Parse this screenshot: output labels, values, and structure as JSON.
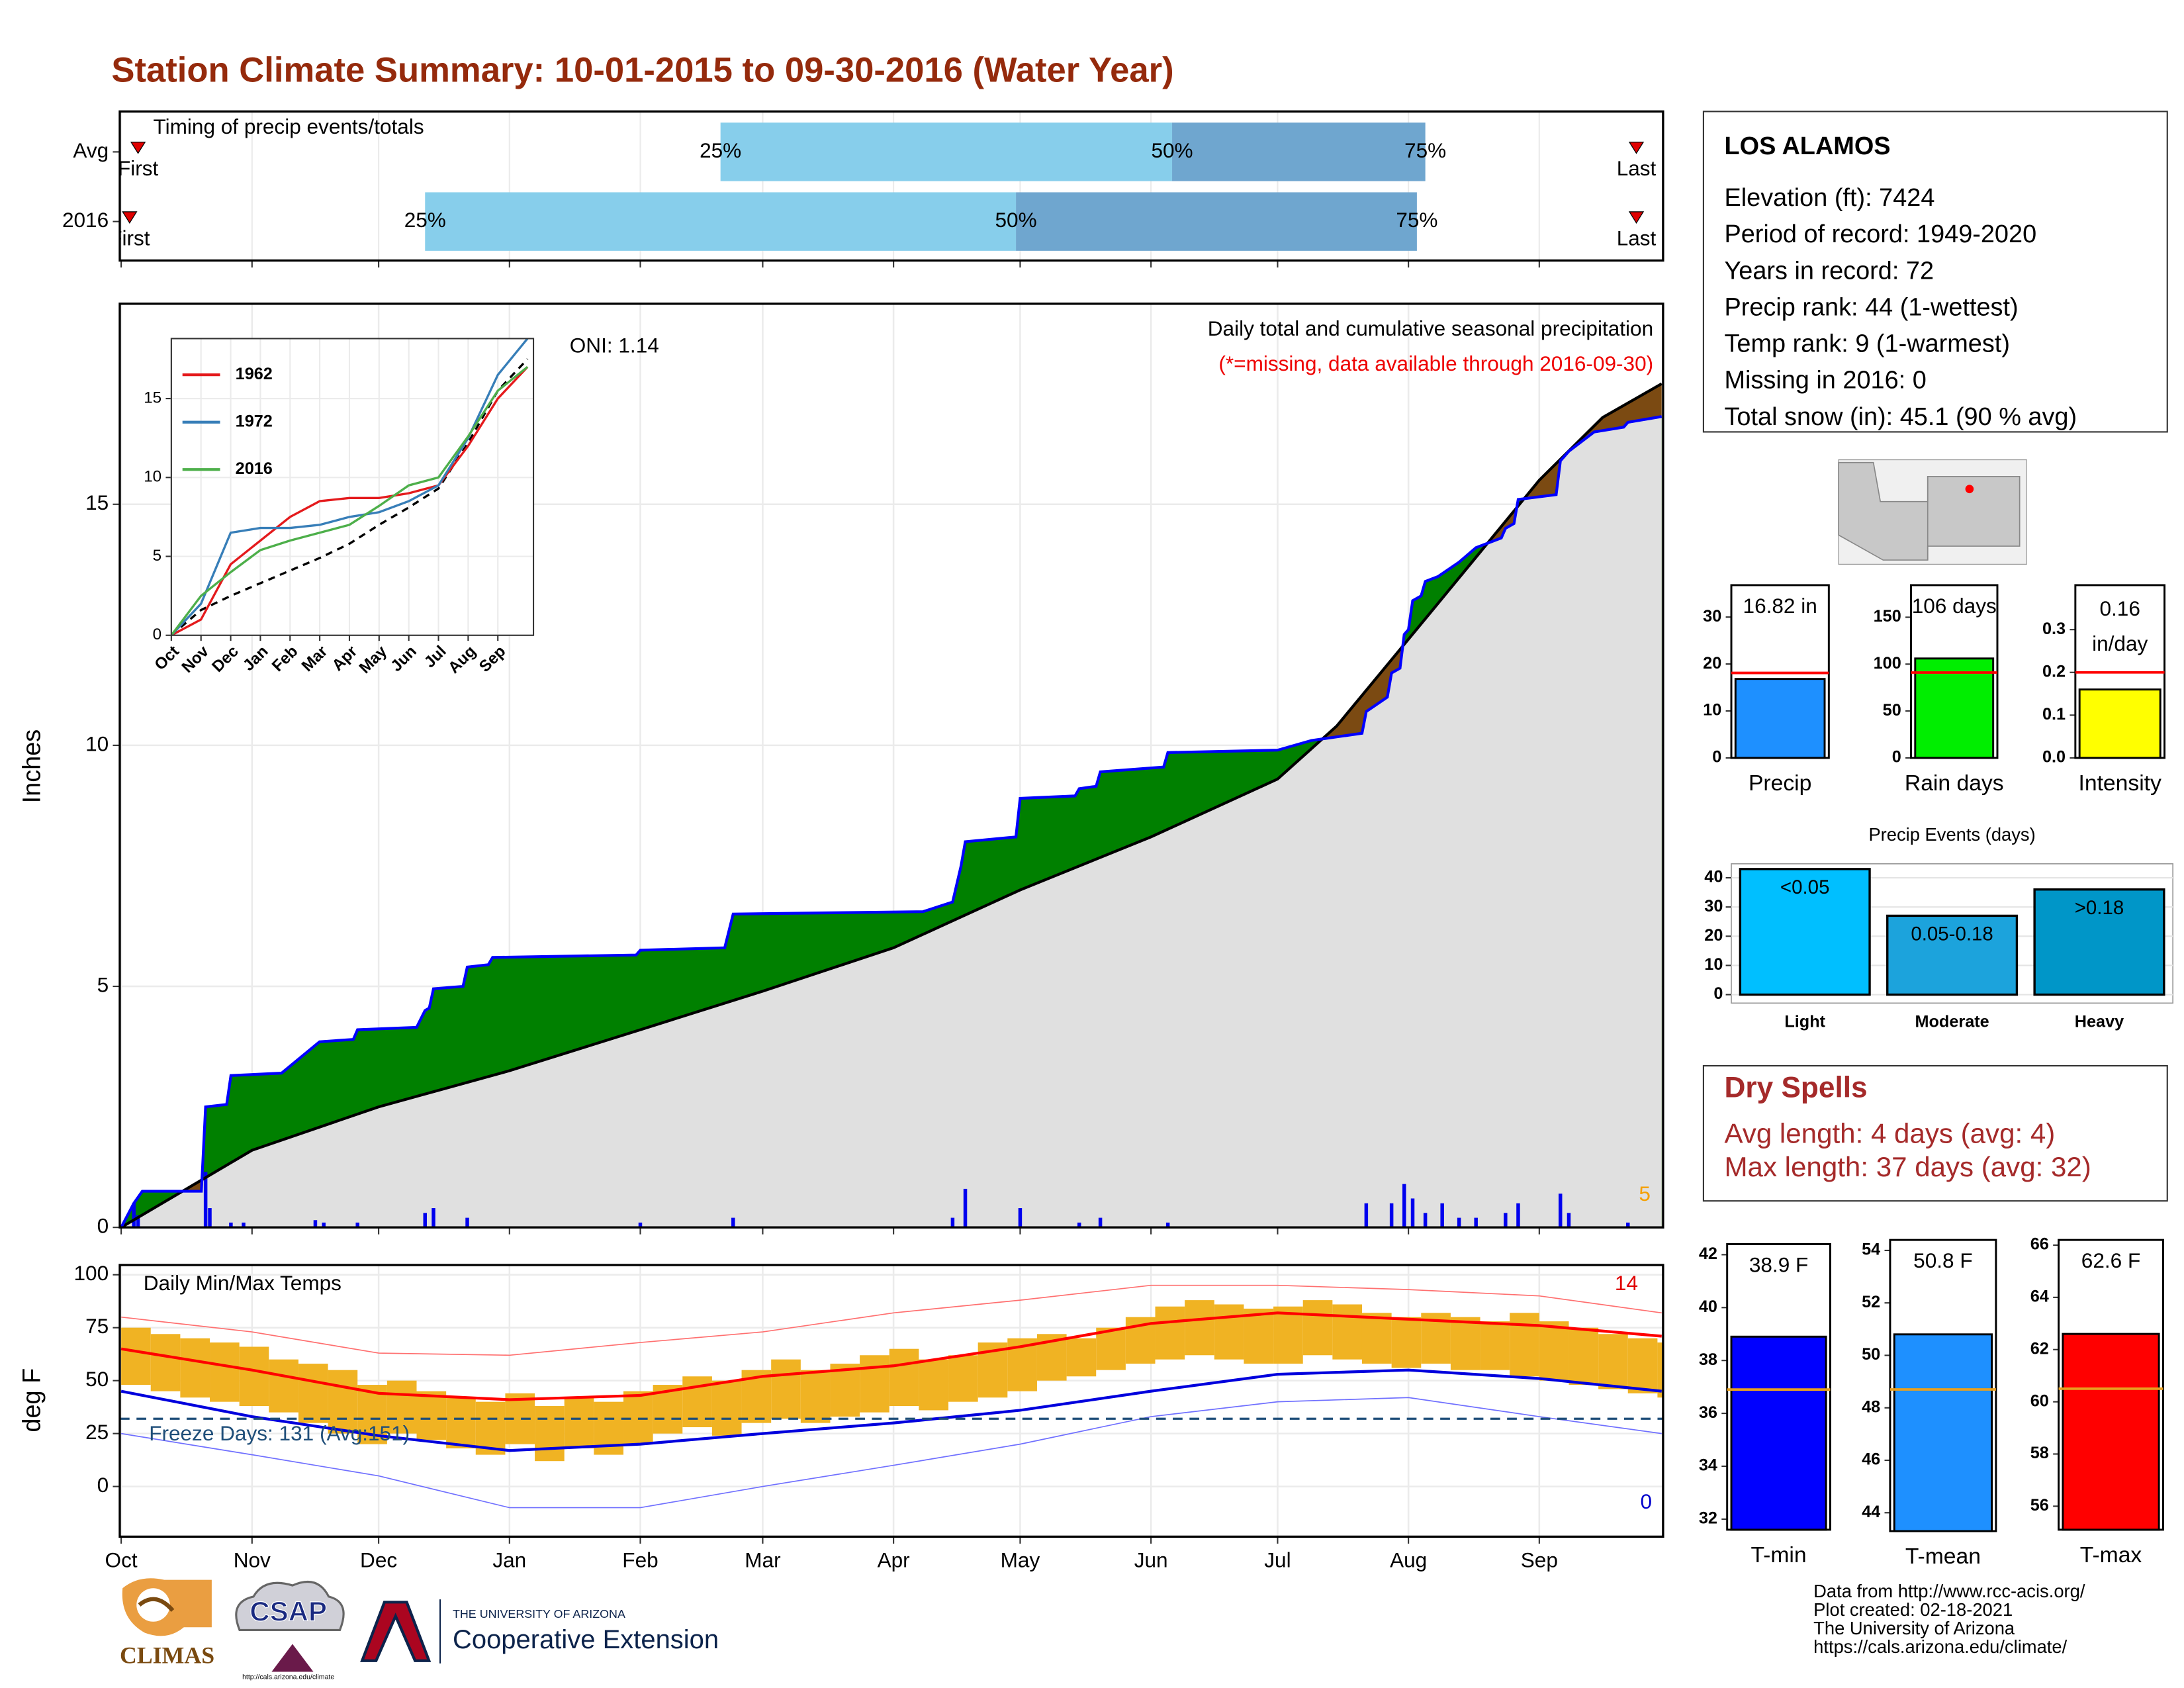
{
  "title": "Station Climate Summary: 10-01-2015 to 09-30-2016 (Water Year)",
  "station": {
    "name": "LOS ALAMOS",
    "lines": [
      "Elevation (ft): 7424",
      "Period of record: 1949-2020",
      "Years in record: 72",
      "Precip rank: 44 (1-wettest)",
      "Temp rank: 9 (1-warmest)",
      "Missing in 2016: 0",
      "Total snow (in): 45.1 (90 % avg)"
    ]
  },
  "dry_spells": {
    "title": "Dry Spells",
    "lines": [
      "Avg length: 4 days (avg: 4)",
      "Max length: 37 days (avg: 32)"
    ]
  },
  "footer": [
    "Data from http://www.rcc-acis.org/",
    "Plot created: 02-18-2021",
    "The University of Arizona",
    "https://cals.arizona.edu/climate/"
  ],
  "logos": {
    "climas": "CLIMAS",
    "csap": "CSAP",
    "csap_url": "http://cals.arizona.edu/climate",
    "ua": "THE UNIVERSITY OF ARIZONA",
    "extension": "Cooperative Extension"
  },
  "chart_data": [
    {
      "type": "timing",
      "title": "Timing of precip events/totals",
      "xlim": [
        0,
        365
      ],
      "xticks": [
        0,
        31,
        61,
        92,
        123,
        152,
        183,
        213,
        244,
        274,
        305,
        336
      ],
      "labels": {
        "first": "First",
        "last": "Last",
        "q25": "25%",
        "q50": "50%",
        "q75": "75%"
      },
      "colors": {
        "light": "#87ceeb",
        "dark": "#6fa6cf",
        "marker": "#e00000"
      },
      "rows": [
        {
          "name": "Avg",
          "first": 4,
          "q25": 142,
          "q50": 249,
          "q75": 309,
          "last": 359
        },
        {
          "name": "2016",
          "first": 2,
          "q25": 72,
          "q50": 212,
          "q75": 307,
          "last": 359
        }
      ]
    },
    {
      "type": "area",
      "title": "Daily total and cumulative seasonal precipitation",
      "subtitle": "(*=missing, data available through 2016-09-30)",
      "annotation": "ONI: 1.14",
      "extreme_days": 5,
      "ylabel": "Inches",
      "xlim": [
        0,
        365
      ],
      "ylim": [
        0,
        19.16
      ],
      "yticks": [
        0,
        5,
        10,
        15
      ],
      "xticks": [
        0,
        31,
        61,
        92,
        123,
        152,
        183,
        213,
        244,
        274,
        305,
        336
      ],
      "above_color": "#008000",
      "below_color": "#7b4a12",
      "base_color": "#e0e0e0",
      "cumulative": {
        "color": "#0000ff",
        "x": [
          0,
          3,
          5,
          19,
          20,
          25,
          26,
          38,
          47,
          55,
          56,
          70,
          72,
          73,
          74,
          81,
          82,
          87,
          88,
          122,
          123,
          143,
          145,
          190,
          197,
          199,
          200,
          212,
          213,
          226,
          227,
          231,
          232,
          247,
          248,
          274,
          282,
          294,
          295,
          300,
          301,
          303,
          304,
          305,
          306,
          308,
          309,
          312,
          317,
          321,
          327,
          328,
          330,
          331,
          340,
          341,
          343,
          349,
          356,
          357,
          365
        ],
        "values": [
          0,
          0.5,
          0.75,
          0.75,
          2.5,
          2.55,
          3.15,
          3.2,
          3.85,
          3.9,
          4.1,
          4.15,
          4.5,
          4.55,
          4.95,
          5.0,
          5.4,
          5.45,
          5.6,
          5.65,
          5.75,
          5.8,
          6.5,
          6.55,
          6.75,
          7.5,
          8.0,
          8.1,
          8.9,
          8.95,
          9.1,
          9.15,
          9.45,
          9.55,
          9.85,
          9.9,
          10.1,
          10.25,
          10.7,
          11.0,
          11.5,
          11.6,
          12.3,
          12.4,
          13.0,
          13.1,
          13.4,
          13.5,
          13.8,
          14.1,
          14.3,
          14.5,
          14.6,
          15.1,
          15.2,
          15.9,
          16.1,
          16.5,
          16.6,
          16.7,
          16.82
        ]
      },
      "average": {
        "color": "#000000",
        "x": [
          0,
          31,
          61,
          92,
          123,
          152,
          183,
          213,
          244,
          274,
          288,
          305,
          321,
          336,
          351,
          365
        ],
        "values": [
          0,
          1.6,
          2.5,
          3.25,
          4.1,
          4.9,
          5.8,
          7.0,
          8.1,
          9.3,
          10.4,
          12.2,
          13.9,
          15.5,
          16.8,
          17.5
        ]
      },
      "daily": {
        "color": "#0000ee",
        "x": [
          3,
          4,
          20,
          21,
          26,
          29,
          46,
          48,
          56,
          72,
          74,
          82,
          123,
          145,
          197,
          200,
          213,
          227,
          232,
          248,
          295,
          301,
          304,
          306,
          309,
          313,
          317,
          321,
          328,
          331,
          341,
          343,
          357
        ],
        "values": [
          0.5,
          0.25,
          1.15,
          0.4,
          0.1,
          0.1,
          0.15,
          0.1,
          0.1,
          0.3,
          0.4,
          0.2,
          0.1,
          0.2,
          0.2,
          0.8,
          0.4,
          0.1,
          0.2,
          0.1,
          0.5,
          0.5,
          0.9,
          0.6,
          0.3,
          0.5,
          0.2,
          0.2,
          0.3,
          0.5,
          0.7,
          0.3,
          0.1
        ]
      }
    },
    {
      "type": "line",
      "xlim": [
        0,
        12.2
      ],
      "ylim": [
        0,
        18.8
      ],
      "yticks": [
        0,
        5,
        10,
        15
      ],
      "xticks": [
        {
          "value": 0,
          "label": "Oct"
        },
        {
          "value": 1,
          "label": "Nov"
        },
        {
          "value": 2,
          "label": "Dec"
        },
        {
          "value": 3,
          "label": "Jan"
        },
        {
          "value": 4,
          "label": "Feb"
        },
        {
          "value": 5,
          "label": "Mar"
        },
        {
          "value": 6,
          "label": "Apr"
        },
        {
          "value": 7,
          "label": "May"
        },
        {
          "value": 8,
          "label": "Jun"
        },
        {
          "value": 9,
          "label": "Jul"
        },
        {
          "value": 10,
          "label": "Aug"
        },
        {
          "value": 11,
          "label": "Sep"
        }
      ],
      "x": [
        0,
        1,
        2,
        3,
        4,
        5,
        6,
        7,
        8,
        9,
        10,
        11,
        12
      ],
      "series": [
        {
          "name": "1962",
          "color": "#e41a1c",
          "values": [
            0,
            1.0,
            4.5,
            6.0,
            7.5,
            8.5,
            8.7,
            8.7,
            9.0,
            9.5,
            12.0,
            15.0,
            17.0
          ]
        },
        {
          "name": "1972",
          "color": "#377eb8",
          "values": [
            0,
            2.0,
            6.5,
            6.8,
            6.8,
            7.0,
            7.5,
            7.8,
            8.5,
            9.5,
            12.5,
            16.5,
            18.8
          ]
        },
        {
          "name": "2016",
          "color": "#4daf4a",
          "values": [
            0,
            2.5,
            4.0,
            5.4,
            6.0,
            6.5,
            7.0,
            8.2,
            9.5,
            10.0,
            12.6,
            15.5,
            17.0
          ]
        }
      ],
      "average": {
        "color": "#000000",
        "values": [
          0,
          1.6,
          2.5,
          3.3,
          4.1,
          4.9,
          5.8,
          7.0,
          8.1,
          9.3,
          12.2,
          15.5,
          17.5
        ]
      }
    },
    {
      "type": "range",
      "title": "Daily Min/Max Temps",
      "ylabel": "deg F",
      "annotation": "Freeze Days: 131 (Avg:151)",
      "freeze_line": 32,
      "hot_days": 14,
      "cold_days": 0,
      "xlim": [
        0,
        365
      ],
      "ylim": [
        -23.7,
        104.6
      ],
      "yticks": [
        0,
        25,
        50,
        75,
        100
      ],
      "xticks": [
        {
          "value": 0,
          "label": "Oct"
        },
        {
          "value": 31,
          "label": "Nov"
        },
        {
          "value": 61,
          "label": "Dec"
        },
        {
          "value": 92,
          "label": "Jan"
        },
        {
          "value": 123,
          "label": "Feb"
        },
        {
          "value": 152,
          "label": "Mar"
        },
        {
          "value": 183,
          "label": "Apr"
        },
        {
          "value": 213,
          "label": "May"
        },
        {
          "value": 244,
          "label": "Jun"
        },
        {
          "value": 274,
          "label": "Jul"
        },
        {
          "value": 305,
          "label": "Aug"
        },
        {
          "value": 336,
          "label": "Sep"
        }
      ],
      "daily": {
        "color": "#f0b323",
        "x": [
          0,
          7,
          14,
          21,
          28,
          35,
          42,
          49,
          56,
          63,
          70,
          77,
          84,
          91,
          98,
          105,
          112,
          119,
          126,
          133,
          140,
          147,
          154,
          161,
          168,
          175,
          182,
          189,
          196,
          203,
          210,
          217,
          224,
          231,
          238,
          245,
          252,
          259,
          266,
          273,
          280,
          287,
          294,
          301,
          308,
          315,
          322,
          329,
          336,
          343,
          350,
          357,
          364
        ],
        "max": [
          75,
          72,
          70,
          68,
          66,
          60,
          58,
          55,
          48,
          50,
          45,
          42,
          40,
          44,
          38,
          42,
          40,
          45,
          48,
          52,
          50,
          55,
          60,
          55,
          58,
          62,
          65,
          60,
          62,
          68,
          70,
          72,
          70,
          75,
          80,
          85,
          88,
          86,
          84,
          85,
          88,
          86,
          82,
          80,
          82,
          80,
          78,
          82,
          78,
          75,
          72,
          70,
          68
        ],
        "min": [
          48,
          45,
          42,
          40,
          38,
          35,
          30,
          25,
          20,
          25,
          22,
          18,
          15,
          20,
          12,
          18,
          15,
          20,
          25,
          28,
          24,
          30,
          32,
          30,
          33,
          35,
          38,
          36,
          40,
          42,
          45,
          50,
          52,
          55,
          58,
          60,
          62,
          60,
          58,
          58,
          62,
          60,
          58,
          56,
          58,
          55,
          55,
          52,
          50,
          48,
          46,
          44,
          42
        ]
      },
      "series": [
        {
          "color": "#ff7070",
          "width": 0.8,
          "x": [
            0,
            31,
            61,
            92,
            123,
            152,
            183,
            213,
            244,
            274,
            305,
            336,
            365
          ],
          "values": [
            80,
            73,
            63,
            62,
            68,
            73,
            82,
            88,
            95,
            95,
            93,
            90,
            82
          ]
        },
        {
          "color": "#7070ff",
          "width": 0.8,
          "x": [
            0,
            31,
            61,
            92,
            123,
            152,
            183,
            213,
            244,
            274,
            305,
            336,
            365
          ],
          "values": [
            25,
            15,
            5,
            -10,
            -10,
            0,
            10,
            20,
            33,
            40,
            42,
            33,
            25
          ]
        },
        {
          "color": "#ff0000",
          "width": 2,
          "x": [
            0,
            31,
            61,
            92,
            123,
            152,
            183,
            213,
            244,
            274,
            305,
            336,
            365
          ],
          "values": [
            65,
            55,
            44,
            41,
            43,
            52,
            57,
            66,
            77,
            82,
            79,
            76,
            71
          ]
        },
        {
          "color": "#0000dd",
          "width": 2,
          "x": [
            0,
            31,
            61,
            92,
            123,
            152,
            183,
            213,
            244,
            274,
            305,
            336,
            365
          ],
          "values": [
            45,
            33,
            24,
            17,
            20,
            25,
            30,
            36,
            45,
            53,
            55,
            51,
            45
          ]
        }
      ]
    },
    {
      "type": "bar",
      "categories": [
        "Precip"
      ],
      "values": [
        16.82
      ],
      "value_labels": [
        "16.82 in"
      ],
      "color": "#1e90ff",
      "average": 18.1,
      "average_color": "#ff0000",
      "ylim": [
        0,
        36.8
      ],
      "yticks": [
        0,
        10,
        20,
        30
      ]
    },
    {
      "type": "bar",
      "categories": [
        "Rain days"
      ],
      "values": [
        106
      ],
      "value_labels": [
        "106 days"
      ],
      "color": "#00ee00",
      "average": 91,
      "average_color": "#ff0000",
      "ylim": [
        0,
        184.2
      ],
      "yticks": [
        0,
        50,
        100,
        150
      ]
    },
    {
      "type": "bar",
      "categories": [
        "Intensity"
      ],
      "values": [
        0.16
      ],
      "value_labels": [
        "0.16"
      ],
      "unit": "in/day",
      "color": "#ffff00",
      "average": 0.2,
      "average_color": "#ff0000",
      "ylim": [
        0,
        0.404
      ],
      "yticks": [
        {
          "value": 0,
          "label": "0.0"
        },
        0.1,
        0.2,
        0.3
      ]
    },
    {
      "type": "events",
      "title": "Precip Events (days)",
      "categories": [
        "Light",
        "Moderate",
        "Heavy"
      ],
      "values": [
        43,
        27,
        36
      ],
      "bar_labels": [
        "<0.05",
        "0.05-0.18",
        ">0.18"
      ],
      "colors": [
        "#00bfff",
        "#1ca3dc",
        "#0096c8"
      ],
      "ylim": [
        -2.9,
        44.8
      ],
      "yticks": [
        0,
        10,
        20,
        30,
        40
      ]
    },
    {
      "type": "bar",
      "categories": [
        "T-min"
      ],
      "values": [
        38.9
      ],
      "value_labels": [
        "38.9 F"
      ],
      "color": "#0000ff",
      "average": 36.9,
      "average_color": "#e8a020",
      "ylim": [
        31.6,
        42.4
      ],
      "yticks": [
        32,
        34,
        36,
        38,
        40,
        42
      ]
    },
    {
      "type": "bar",
      "categories": [
        "T-mean"
      ],
      "values": [
        50.8
      ],
      "value_labels": [
        "50.8 F"
      ],
      "color": "#1e90ff",
      "average": 48.7,
      "average_color": "#e8a020",
      "ylim": [
        43.3,
        54.4
      ],
      "yticks": [
        44,
        46,
        48,
        50,
        52,
        54
      ]
    },
    {
      "type": "bar",
      "categories": [
        "T-max"
      ],
      "values": [
        62.6
      ],
      "value_labels": [
        "62.6 F"
      ],
      "color": "#ff0000",
      "average": 60.5,
      "average_color": "#e8a020",
      "ylim": [
        55.1,
        66.2
      ],
      "yticks": [
        56,
        58,
        60,
        62,
        64,
        66
      ]
    }
  ]
}
